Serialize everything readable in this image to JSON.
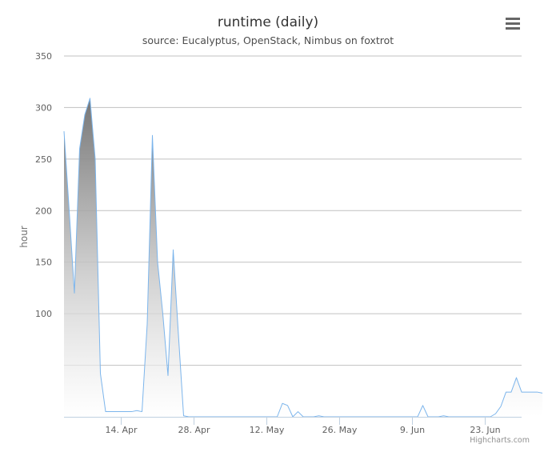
{
  "chart_data": {
    "type": "area",
    "title": "runtime (daily)",
    "subtitle": "source: Eucalyptus, OpenStack, Nimbus on foxtrot",
    "xlabel": "",
    "ylabel": "hour",
    "x_start": "2014-04-03",
    "x_interval_days": 1,
    "xlim": [
      "2014-04-03",
      "2014-06-30"
    ],
    "ylim": [
      0,
      350
    ],
    "y_ticks": [
      100,
      150,
      200,
      250,
      300,
      350
    ],
    "y_tick_labels": [
      "100",
      "150",
      "200",
      "250",
      "300",
      "350"
    ],
    "x_ticks": [
      "2014-04-14",
      "2014-04-28",
      "2014-05-12",
      "2014-05-26",
      "2014-06-09",
      "2014-06-23"
    ],
    "x_tick_labels": [
      "14. Apr",
      "28. Apr",
      "12. May",
      "26. May",
      "9. Jun",
      "23. Jun"
    ],
    "grid": true,
    "series": [
      {
        "color": "#7cb5ec",
        "values": [
          277,
          200,
          120,
          260,
          293,
          309,
          250,
          42,
          5,
          5,
          5,
          5,
          5,
          5,
          6,
          5,
          90,
          273,
          150,
          100,
          40,
          162,
          80,
          1,
          0,
          0,
          0,
          0,
          0,
          0,
          0,
          0,
          0,
          0,
          0,
          0,
          0,
          0,
          0,
          0,
          0,
          0,
          13,
          11,
          0,
          5,
          0,
          0,
          0,
          1,
          0,
          0,
          0,
          0,
          0,
          0,
          0,
          0,
          0,
          0,
          0,
          0,
          0,
          0,
          0,
          0,
          0,
          0,
          0,
          11,
          0,
          0,
          0,
          1,
          0,
          0,
          0,
          0,
          0,
          0,
          0,
          0,
          0,
          3,
          10,
          24,
          24,
          38,
          24,
          24,
          24,
          24,
          23
        ]
      }
    ]
  },
  "credits": "Highcharts.com",
  "menu_icon": "hamburger-menu-icon"
}
